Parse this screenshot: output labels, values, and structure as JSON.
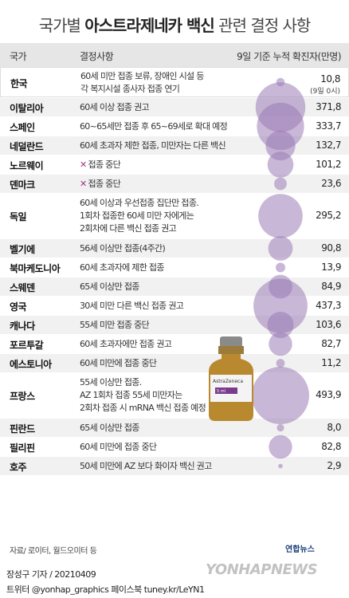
{
  "title_prefix": "국가별 ",
  "title_bold": "아스트라제네카 백신",
  "title_suffix": " 관련 결정 사항",
  "header": {
    "country": "국가",
    "decision": "결정사항",
    "value": "9일 기준 누적 확진자(만명)"
  },
  "colors": {
    "bubble": "#9b7bb7",
    "accent": "#a0338a",
    "row_alt": "#f1f1f1"
  },
  "chart_data": {
    "type": "table",
    "unit": "만명",
    "rows": [
      {
        "country": "한국",
        "decision": [
          "60세 미만 접종 보류, 장애인 시설 등",
          "각 복지시설 종사자 접종 연기"
        ],
        "value": 10.8,
        "value_label": "10,8",
        "sub_label": "(9일 0시)",
        "suspended": false
      },
      {
        "country": "이탈리아",
        "decision": [
          "60세 이상 접종 권고"
        ],
        "value": 371.8,
        "value_label": "371,8",
        "suspended": false
      },
      {
        "country": "스페인",
        "decision": [
          "60~65세만 접종 후 65~69세로 확대 예정"
        ],
        "value": 333.7,
        "value_label": "333,7",
        "suspended": false
      },
      {
        "country": "네덜란드",
        "decision": [
          "60세 초과자 제한 접종, 미만자는 다른 백신"
        ],
        "value": 132.7,
        "value_label": "132,7",
        "suspended": false
      },
      {
        "country": "노르웨이",
        "decision": [
          "접종 중단"
        ],
        "value": 101.2,
        "value_label": "101,2",
        "suspended": true
      },
      {
        "country": "덴마크",
        "decision": [
          "접종 중단"
        ],
        "value": 23.6,
        "value_label": "23,6",
        "suspended": true
      },
      {
        "country": "독일",
        "decision": [
          "60세 이상과 우선접종 집단만 접종.",
          "1회차 접종한 60세 미만 자에게는",
          "2회차에 다른 백신 접종 권고"
        ],
        "value": 295.2,
        "value_label": "295,2",
        "suspended": false
      },
      {
        "country": "벨기에",
        "decision": [
          "56세 이상만 접종(4주간)"
        ],
        "value": 90.8,
        "value_label": "90,8",
        "suspended": false
      },
      {
        "country": "북마케도니아",
        "decision": [
          "60세 초과자에 제한 접종"
        ],
        "value": 13.9,
        "value_label": "13,9",
        "suspended": false
      },
      {
        "country": "스웨덴",
        "decision": [
          "65세 이상만 접종"
        ],
        "value": 84.9,
        "value_label": "84,9",
        "suspended": false
      },
      {
        "country": "영국",
        "decision": [
          "30세 미만 다른 백신 접종 권고"
        ],
        "value": 437.3,
        "value_label": "437,3",
        "suspended": false
      },
      {
        "country": "캐나다",
        "decision": [
          "55세 미만 접종 중단"
        ],
        "value": 103.6,
        "value_label": "103,6",
        "suspended": false
      },
      {
        "country": "포르투갈",
        "decision": [
          "60세 초과자에만 접종 권고"
        ],
        "value": 82.7,
        "value_label": "82,7",
        "suspended": false
      },
      {
        "country": "에스토니아",
        "decision": [
          "60세 미만에 접종 중단"
        ],
        "value": 11.2,
        "value_label": "11,2",
        "suspended": false
      },
      {
        "country": "프랑스",
        "decision": [
          "55세 이상만 접종.",
          "AZ 1회차 접종 55세 미만자는",
          "2회차 접종 시 mRNA 백신 접종 예정"
        ],
        "value": 493.9,
        "value_label": "493,9",
        "suspended": false
      },
      {
        "country": "핀란드",
        "decision": [
          "65세 이상만 접종"
        ],
        "value": 8.0,
        "value_label": "8,0",
        "suspended": false
      },
      {
        "country": "필리핀",
        "decision": [
          "60세 미만에 접종 중단"
        ],
        "value": 82.8,
        "value_label": "82,8",
        "suspended": false
      },
      {
        "country": "호주",
        "decision": [
          "50세 미만에 AZ 보다 화이자 백신 권고"
        ],
        "value": 2.9,
        "value_label": "2,9",
        "suspended": false
      }
    ]
  },
  "vial_text": [
    "AstraZeneca",
    "5 ml"
  ],
  "source": "자료/ 로이터, 월드오미터 등",
  "logo_small": "연합뉴스",
  "reporter": "장성구 기자 / 20210409",
  "social": "트위터 @yonhap_graphics  페이스북 tuney.kr/LeYN1",
  "watermark": "YONHAPNEWS"
}
